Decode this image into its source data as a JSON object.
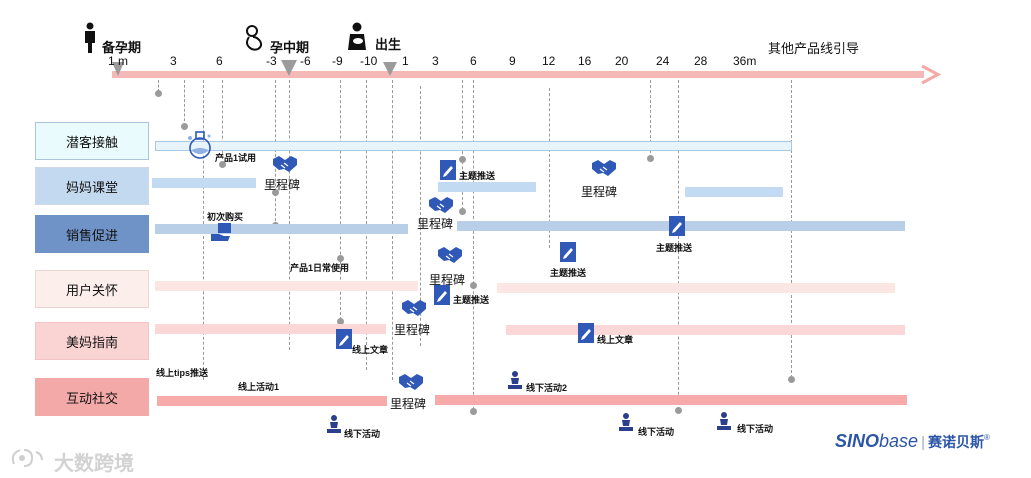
{
  "phases": {
    "pre_pregnancy": "备孕期",
    "mid_pregnancy": "孕中期",
    "birth": "出生",
    "other": "其他产品线引导"
  },
  "ticks": [
    "1 m",
    "3",
    "6",
    "-3",
    "-6",
    "-9",
    "-10",
    "1",
    "3",
    "6",
    "9",
    "12",
    "16",
    "20",
    "24",
    "28",
    "36m"
  ],
  "categories": [
    "潜客接触",
    "妈妈课堂",
    "销售促进",
    "用户关怀",
    "美妈指南",
    "互动社交"
  ],
  "labels": {
    "trial": "产品1试用",
    "milestone": "里程碑",
    "topic_push": "主题推送",
    "first_purchase": "初次购买",
    "daily_use": "产品1日常使用",
    "online_article": "线上文章",
    "online_tips": "线上tips推送",
    "online_event1": "线上活动1",
    "offline_event": "线下活动",
    "offline_event2": "线下活动2"
  },
  "brand": {
    "name_bold": "SINO",
    "name_light": "base",
    "name_cn": "赛诺贝斯",
    "reg": "®"
  },
  "watermark": "大数跨境",
  "colors": {
    "axis": "#f4a9a6",
    "icon": "#2f58b7",
    "dark_icon": "#2b3f8c"
  }
}
